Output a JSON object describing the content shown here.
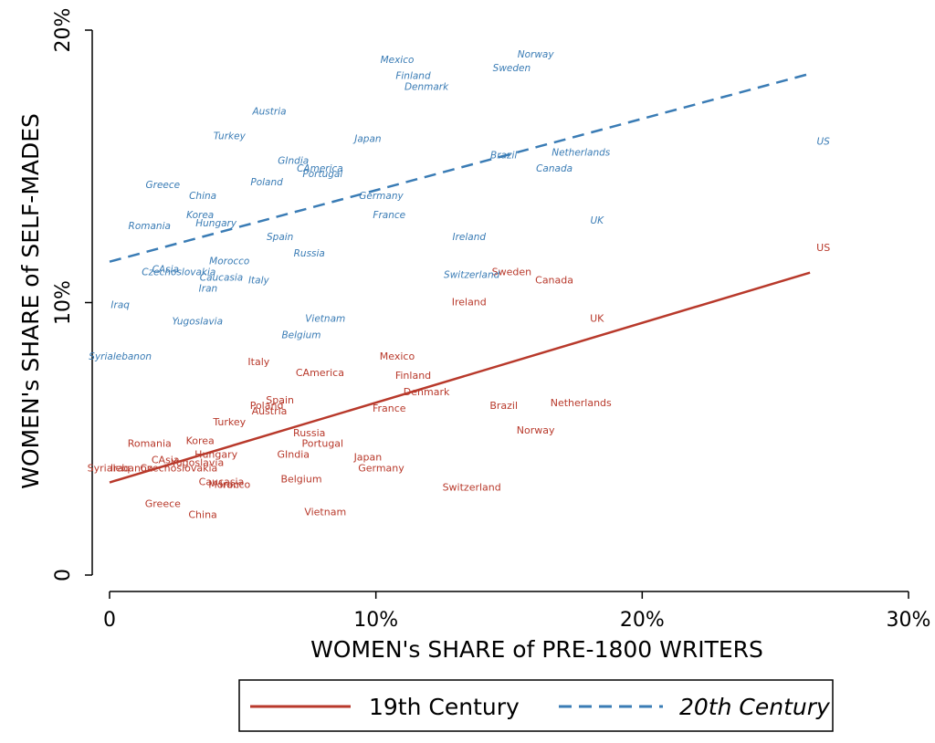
{
  "chart_data": {
    "type": "scatter",
    "xlabel": "WOMEN's SHARE of PRE-1800 WRITERS",
    "ylabel": "WOMEN's SHARE of SELF-MADES",
    "xlim": [
      0,
      0.3
    ],
    "ylim": [
      0,
      0.2
    ],
    "x_ticks": [
      0,
      0.1,
      0.2,
      0.3
    ],
    "x_tick_labels": [
      "0",
      "10%",
      "20%",
      "30%"
    ],
    "y_ticks": [
      0,
      0.1,
      0.2
    ],
    "y_tick_labels": [
      "0",
      "10%",
      "20%"
    ],
    "grid": false,
    "legend_position": "bottom",
    "series": [
      {
        "name": "19th Century",
        "color": "#b8392b",
        "line_style": "solid",
        "fit": {
          "x": [
            0,
            0.263
          ],
          "y": [
            0.034,
            0.111
          ]
        },
        "points": [
          {
            "label": "US",
            "x": 0.268,
            "y": 0.12
          },
          {
            "label": "Sweden",
            "x": 0.151,
            "y": 0.111
          },
          {
            "label": "Canada",
            "x": 0.167,
            "y": 0.108
          },
          {
            "label": "Ireland",
            "x": 0.135,
            "y": 0.1
          },
          {
            "label": "UK",
            "x": 0.183,
            "y": 0.094
          },
          {
            "label": "Mexico",
            "x": 0.108,
            "y": 0.08
          },
          {
            "label": "Italy",
            "x": 0.056,
            "y": 0.078
          },
          {
            "label": "CAmerica",
            "x": 0.079,
            "y": 0.074
          },
          {
            "label": "Finland",
            "x": 0.114,
            "y": 0.073
          },
          {
            "label": "Denmark",
            "x": 0.119,
            "y": 0.067
          },
          {
            "label": "Netherlands",
            "x": 0.177,
            "y": 0.063
          },
          {
            "label": "Spain",
            "x": 0.064,
            "y": 0.064
          },
          {
            "label": "Poland",
            "x": 0.059,
            "y": 0.062
          },
          {
            "label": "Austria",
            "x": 0.06,
            "y": 0.06
          },
          {
            "label": "Brazil",
            "x": 0.148,
            "y": 0.062
          },
          {
            "label": "France",
            "x": 0.105,
            "y": 0.061
          },
          {
            "label": "Turkey",
            "x": 0.045,
            "y": 0.056
          },
          {
            "label": "Norway",
            "x": 0.16,
            "y": 0.053
          },
          {
            "label": "Russia",
            "x": 0.075,
            "y": 0.052
          },
          {
            "label": "Romania",
            "x": 0.015,
            "y": 0.048
          },
          {
            "label": "Korea",
            "x": 0.034,
            "y": 0.049
          },
          {
            "label": "Portugal",
            "x": 0.08,
            "y": 0.048
          },
          {
            "label": "Hungary",
            "x": 0.04,
            "y": 0.044
          },
          {
            "label": "GIndia",
            "x": 0.069,
            "y": 0.044
          },
          {
            "label": "Japan",
            "x": 0.097,
            "y": 0.043
          },
          {
            "label": "CAsia",
            "x": 0.021,
            "y": 0.042
          },
          {
            "label": "Yugoslavia",
            "x": 0.033,
            "y": 0.041
          },
          {
            "label": "Iraq",
            "x": 0.004,
            "y": 0.039
          },
          {
            "label": "Syrialebanon",
            "x": 0.004,
            "y": 0.039
          },
          {
            "label": "Czechoslovakia",
            "x": 0.026,
            "y": 0.039
          },
          {
            "label": "Germany",
            "x": 0.102,
            "y": 0.039
          },
          {
            "label": "Belgium",
            "x": 0.072,
            "y": 0.035
          },
          {
            "label": "Caucasia",
            "x": 0.042,
            "y": 0.034
          },
          {
            "label": "Iran",
            "x": 0.045,
            "y": 0.033
          },
          {
            "label": "Morocco",
            "x": 0.045,
            "y": 0.033
          },
          {
            "label": "Switzerland",
            "x": 0.136,
            "y": 0.032
          },
          {
            "label": "Greece",
            "x": 0.02,
            "y": 0.026
          },
          {
            "label": "China",
            "x": 0.035,
            "y": 0.022
          },
          {
            "label": "Vietnam",
            "x": 0.081,
            "y": 0.023
          }
        ]
      },
      {
        "name": "20th Century",
        "color": "#3a7cb5",
        "line_style": "dashed",
        "fit": {
          "x": [
            0,
            0.263
          ],
          "y": [
            0.115,
            0.184
          ]
        },
        "points": [
          {
            "label": "Norway",
            "x": 0.16,
            "y": 0.191
          },
          {
            "label": "Mexico",
            "x": 0.108,
            "y": 0.189
          },
          {
            "label": "Sweden",
            "x": 0.151,
            "y": 0.186
          },
          {
            "label": "Finland",
            "x": 0.114,
            "y": 0.183
          },
          {
            "label": "Denmark",
            "x": 0.119,
            "y": 0.179
          },
          {
            "label": "Austria",
            "x": 0.06,
            "y": 0.17
          },
          {
            "label": "Turkey",
            "x": 0.045,
            "y": 0.161
          },
          {
            "label": "Japan",
            "x": 0.097,
            "y": 0.16
          },
          {
            "label": "US",
            "x": 0.268,
            "y": 0.159
          },
          {
            "label": "Netherlands",
            "x": 0.177,
            "y": 0.155
          },
          {
            "label": "Brazil",
            "x": 0.148,
            "y": 0.154
          },
          {
            "label": "GIndia",
            "x": 0.069,
            "y": 0.152
          },
          {
            "label": "CAmerica",
            "x": 0.079,
            "y": 0.149
          },
          {
            "label": "Canada",
            "x": 0.167,
            "y": 0.149
          },
          {
            "label": "Portugal",
            "x": 0.08,
            "y": 0.147
          },
          {
            "label": "Poland",
            "x": 0.059,
            "y": 0.144
          },
          {
            "label": "Greece",
            "x": 0.02,
            "y": 0.143
          },
          {
            "label": "China",
            "x": 0.035,
            "y": 0.139
          },
          {
            "label": "Germany",
            "x": 0.102,
            "y": 0.139
          },
          {
            "label": "Korea",
            "x": 0.034,
            "y": 0.132
          },
          {
            "label": "France",
            "x": 0.105,
            "y": 0.132
          },
          {
            "label": "UK",
            "x": 0.183,
            "y": 0.13
          },
          {
            "label": "Romania",
            "x": 0.015,
            "y": 0.128
          },
          {
            "label": "Hungary",
            "x": 0.04,
            "y": 0.129
          },
          {
            "label": "Spain",
            "x": 0.064,
            "y": 0.124
          },
          {
            "label": "Ireland",
            "x": 0.135,
            "y": 0.124
          },
          {
            "label": "Russia",
            "x": 0.075,
            "y": 0.118
          },
          {
            "label": "Morocco",
            "x": 0.045,
            "y": 0.115
          },
          {
            "label": "CAsia",
            "x": 0.021,
            "y": 0.112
          },
          {
            "label": "Czechoslovakia",
            "x": 0.026,
            "y": 0.111
          },
          {
            "label": "Switzerland",
            "x": 0.136,
            "y": 0.11
          },
          {
            "label": "Caucasia",
            "x": 0.042,
            "y": 0.109
          },
          {
            "label": "Italy",
            "x": 0.056,
            "y": 0.108
          },
          {
            "label": "Iran",
            "x": 0.037,
            "y": 0.105
          },
          {
            "label": "Iraq",
            "x": 0.004,
            "y": 0.099
          },
          {
            "label": "Vietnam",
            "x": 0.081,
            "y": 0.094
          },
          {
            "label": "Yugoslavia",
            "x": 0.033,
            "y": 0.093
          },
          {
            "label": "Belgium",
            "x": 0.072,
            "y": 0.088
          },
          {
            "label": "Syrialebanon",
            "x": 0.004,
            "y": 0.08
          }
        ]
      }
    ]
  }
}
